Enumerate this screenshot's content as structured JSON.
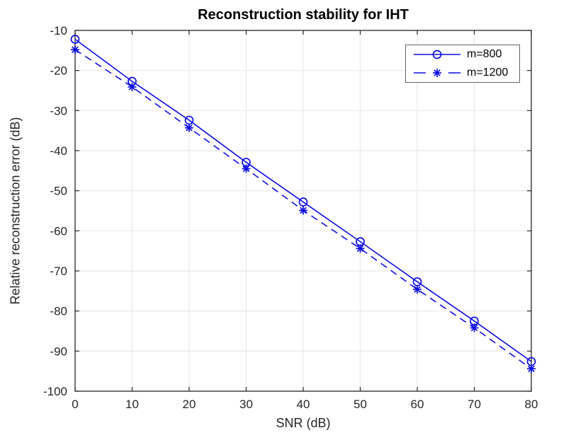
{
  "figure": {
    "title": "Reconstruction stability for IHT"
  },
  "colors": {
    "series": "#0d0de0",
    "grid": "#e8e8e8",
    "axis": "#262626",
    "tick_label": "#262626",
    "background": "#ffffff",
    "legend_border": "#636363"
  },
  "chart_data": {
    "type": "line",
    "title": "Reconstruction stability for IHT",
    "xlabel": "SNR (dB)",
    "ylabel": "Relative reconstruction error (dB)",
    "xlim": [
      0,
      80
    ],
    "ylim": [
      -100,
      -10
    ],
    "x_ticks": [
      0,
      10,
      20,
      30,
      40,
      50,
      60,
      70,
      80
    ],
    "y_ticks": [
      -100,
      -90,
      -80,
      -70,
      -60,
      -50,
      -40,
      -30,
      -20,
      -10
    ],
    "grid": true,
    "legend_position": "top-right",
    "x": [
      0,
      10,
      20,
      30,
      40,
      50,
      60,
      70,
      80
    ],
    "series": [
      {
        "name": "m=800",
        "line_style": "solid",
        "marker": "circle",
        "color": "#0d0de0",
        "values": [
          -12.2,
          -22.7,
          -32.4,
          -42.9,
          -52.8,
          -62.7,
          -72.7,
          -82.5,
          -92.6
        ]
      },
      {
        "name": "m=1200",
        "line_style": "dashed",
        "marker": "asterisk",
        "color": "#0d0de0",
        "values": [
          -14.8,
          -24.1,
          -34.3,
          -44.5,
          -54.9,
          -64.4,
          -74.6,
          -84.2,
          -94.4
        ]
      }
    ]
  }
}
